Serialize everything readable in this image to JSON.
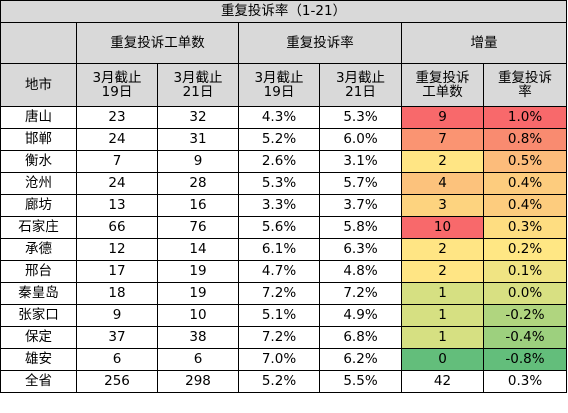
{
  "title": "重复投诉率（1-21）",
  "group_headers": [
    "重复投诉工单数",
    "重复投诉率",
    "增量"
  ],
  "city_header": "地市",
  "sub_headers": [
    [
      "3月截止",
      "19日"
    ],
    [
      "3月截止",
      "21日"
    ],
    [
      "3月截止",
      "19日"
    ],
    [
      "3月截止",
      "21日"
    ],
    [
      "重复投诉",
      "工单数"
    ],
    [
      "重复投诉",
      "率"
    ]
  ],
  "rows": [
    {
      "city": "唐山",
      "cnt19": "23",
      "cnt21": "32",
      "rate19": "4.3%",
      "rate21": "5.3%",
      "inc_cnt": "9",
      "inc_rate": "1.0%",
      "c_cnt": "#f8696b",
      "c_rate": "#f8696b"
    },
    {
      "city": "邯郸",
      "cnt19": "24",
      "cnt21": "31",
      "rate19": "5.2%",
      "rate21": "6.0%",
      "inc_cnt": "7",
      "inc_rate": "0.8%",
      "c_cnt": "#fa9472",
      "c_rate": "#f98b70"
    },
    {
      "city": "衡水",
      "cnt19": "7",
      "cnt21": "9",
      "rate19": "2.6%",
      "rate21": "3.1%",
      "inc_cnt": "2",
      "inc_rate": "0.5%",
      "c_cnt": "#ffe584",
      "c_rate": "#fcbc7b"
    },
    {
      "city": "沧州",
      "cnt19": "24",
      "cnt21": "28",
      "rate19": "5.3%",
      "rate21": "5.7%",
      "inc_cnt": "4",
      "inc_rate": "0.4%",
      "c_cnt": "#fcc27c",
      "c_rate": "#fdcc7e"
    },
    {
      "city": "廊坊",
      "cnt19": "13",
      "cnt21": "16",
      "rate19": "3.3%",
      "rate21": "3.7%",
      "inc_cnt": "3",
      "inc_rate": "0.4%",
      "c_cnt": "#fdd37f",
      "c_rate": "#fdcc7e"
    },
    {
      "city": "石家庄",
      "cnt19": "66",
      "cnt21": "76",
      "rate19": "5.6%",
      "rate21": "5.8%",
      "inc_cnt": "10",
      "inc_rate": "0.3%",
      "c_cnt": "#f8696b",
      "c_rate": "#fedd81"
    },
    {
      "city": "承德",
      "cnt19": "12",
      "cnt21": "14",
      "rate19": "6.1%",
      "rate21": "6.3%",
      "inc_cnt": "2",
      "inc_rate": "0.2%",
      "c_cnt": "#ffe584",
      "c_rate": "#ffe784"
    },
    {
      "city": "邢台",
      "cnt19": "17",
      "cnt21": "19",
      "rate19": "4.7%",
      "rate21": "4.8%",
      "inc_cnt": "2",
      "inc_rate": "0.1%",
      "c_cnt": "#ffe584",
      "c_rate": "#f0e483"
    },
    {
      "city": "秦皇岛",
      "cnt19": "18",
      "cnt21": "19",
      "rate19": "7.2%",
      "rate21": "7.2%",
      "inc_cnt": "1",
      "inc_rate": "0.0%",
      "c_cnt": "#d6e082",
      "c_rate": "#d8e082"
    },
    {
      "city": "张家口",
      "cnt19": "9",
      "cnt21": "10",
      "rate19": "5.1%",
      "rate21": "4.9%",
      "inc_cnt": "1",
      "inc_rate": "-0.2%",
      "c_cnt": "#d6e082",
      "c_rate": "#b0d57f"
    },
    {
      "city": "保定",
      "cnt19": "37",
      "cnt21": "38",
      "rate19": "7.2%",
      "rate21": "6.8%",
      "inc_cnt": "1",
      "inc_rate": "-0.4%",
      "c_cnt": "#d6e082",
      "c_rate": "#9dd07e"
    },
    {
      "city": "雄安",
      "cnt19": "6",
      "cnt21": "6",
      "rate19": "7.0%",
      "rate21": "6.2%",
      "inc_cnt": "0",
      "inc_rate": "-0.8%",
      "c_cnt": "#63be7b",
      "c_rate": "#63be7b"
    },
    {
      "city": "全省",
      "cnt19": "256",
      "cnt21": "298",
      "rate19": "5.2%",
      "rate21": "5.5%",
      "inc_cnt": "42",
      "inc_rate": "0.3%",
      "c_cnt": "#ffffff",
      "c_rate": "#ffffff"
    }
  ]
}
